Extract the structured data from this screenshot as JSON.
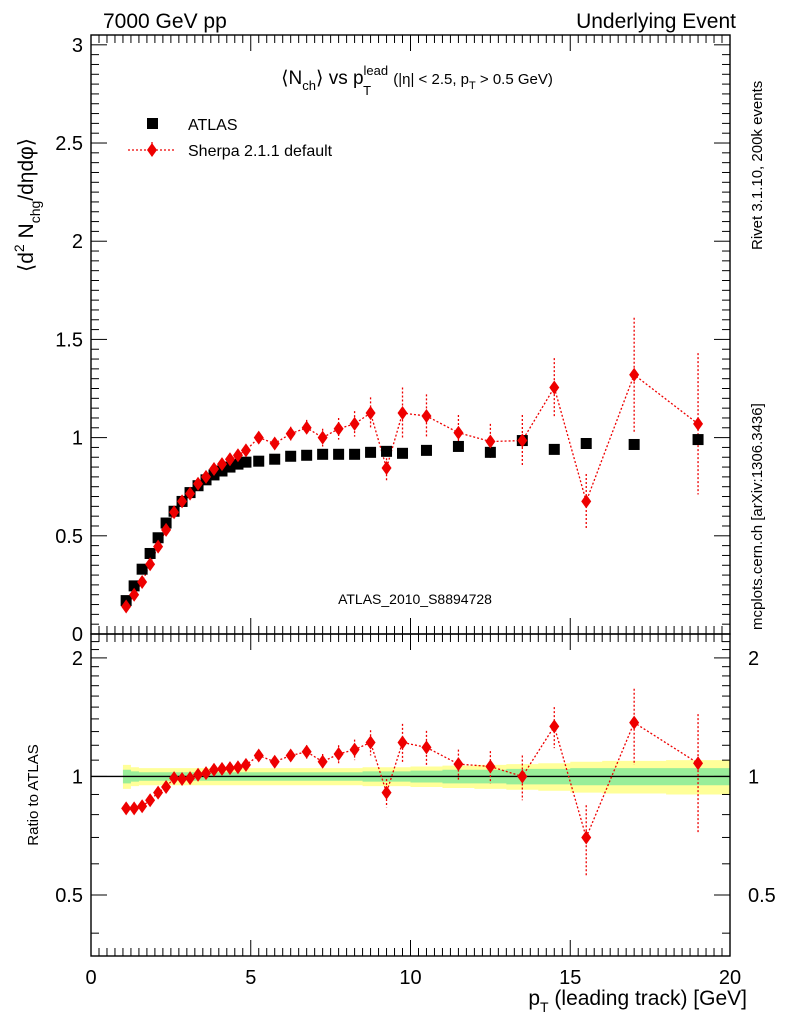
{
  "header": {
    "left": "7000 GeV pp",
    "right": "Underlying Event"
  },
  "side": {
    "top": "Rivet 3.1.10,  200k events",
    "bottom": "mcplots.cern.ch [arXiv:1306.3436]"
  },
  "colors": {
    "data": "#000000",
    "mc": "#ee0000",
    "band_inner": "#99ee99",
    "band_outer": "#ffff99"
  },
  "chart_data": [
    {
      "type": "scatter",
      "title": {
        "main_a": "⟨N",
        "main_a_sub": "ch",
        "main_b": "⟩ vs p",
        "main_b_sup": "lead",
        "main_b_sub": "T",
        "cond_a": " (|η| < 2.5, p",
        "cond_a_sub": "T",
        "cond_b": " > 0.5 GeV)"
      },
      "ylabel": {
        "a": "⟨d",
        "a_sup": "2",
        "b": " N",
        "b_sub": "chg",
        "c": "/dηdφ⟩"
      },
      "watermark": "ATLAS_2010_S8894728",
      "xlim": [
        0,
        20
      ],
      "ylim": [
        0,
        3.05
      ],
      "yticks": [
        {
          "v": 0,
          "label": "0"
        },
        {
          "v": 0.5,
          "label": "0.5"
        },
        {
          "v": 1,
          "label": "1"
        },
        {
          "v": 1.5,
          "label": "1.5"
        },
        {
          "v": 2,
          "label": "2"
        },
        {
          "v": 2.5,
          "label": "2.5"
        },
        {
          "v": 3,
          "label": "3"
        }
      ],
      "legend_placement": "top-left",
      "series": [
        {
          "name": "ATLAS",
          "marker": "square",
          "x": [
            1.1,
            1.35,
            1.6,
            1.85,
            2.1,
            2.35,
            2.6,
            2.85,
            3.1,
            3.35,
            3.6,
            3.85,
            4.1,
            4.35,
            4.6,
            4.85,
            5.25,
            5.75,
            6.25,
            6.75,
            7.25,
            7.75,
            8.25,
            8.75,
            9.25,
            9.75,
            10.5,
            11.5,
            12.5,
            13.5,
            14.5,
            15.5,
            17.0,
            19.0
          ],
          "y": [
            0.17,
            0.245,
            0.33,
            0.41,
            0.49,
            0.565,
            0.625,
            0.675,
            0.72,
            0.755,
            0.785,
            0.81,
            0.83,
            0.85,
            0.865,
            0.875,
            0.88,
            0.89,
            0.905,
            0.91,
            0.915,
            0.915,
            0.915,
            0.925,
            0.93,
            0.92,
            0.935,
            0.955,
            0.925,
            0.985,
            0.94,
            0.97,
            0.965,
            0.99
          ]
        },
        {
          "name": "Sherpa 2.1.1 default",
          "marker": "diamond",
          "line": "dotted",
          "x": [
            1.1,
            1.35,
            1.6,
            1.85,
            2.1,
            2.35,
            2.6,
            2.85,
            3.1,
            3.35,
            3.6,
            3.85,
            4.1,
            4.35,
            4.6,
            4.85,
            5.25,
            5.75,
            6.25,
            6.75,
            7.25,
            7.75,
            8.25,
            8.75,
            9.25,
            9.75,
            10.5,
            11.5,
            12.5,
            13.5,
            14.5,
            15.5,
            17.0,
            19.0
          ],
          "y": [
            0.14,
            0.2,
            0.265,
            0.355,
            0.445,
            0.53,
            0.62,
            0.675,
            0.715,
            0.765,
            0.8,
            0.84,
            0.865,
            0.89,
            0.91,
            0.935,
            1.0,
            0.97,
            1.02,
            1.05,
            1.0,
            1.045,
            1.07,
            1.125,
            0.845,
            1.125,
            1.11,
            1.025,
            0.98,
            0.985,
            1.255,
            0.675,
            1.32,
            1.07
          ],
          "err": [
            0.005,
            0.005,
            0.005,
            0.005,
            0.005,
            0.005,
            0.005,
            0.006,
            0.007,
            0.008,
            0.01,
            0.012,
            0.014,
            0.016,
            0.018,
            0.02,
            0.02,
            0.025,
            0.035,
            0.04,
            0.045,
            0.055,
            0.065,
            0.08,
            0.07,
            0.13,
            0.11,
            0.09,
            0.09,
            0.13,
            0.15,
            0.14,
            0.29,
            0.36
          ]
        }
      ]
    },
    {
      "type": "scatter",
      "ylabel": "Ratio to ATLAS",
      "xlabel": {
        "a": "p",
        "a_sub": "T",
        "b": " (leading track) [GeV]"
      },
      "xlim": [
        0,
        20
      ],
      "ylim": [
        0.35,
        2.3
      ],
      "xticks": [
        {
          "v": 0,
          "label": "0"
        },
        {
          "v": 5,
          "label": "5"
        },
        {
          "v": 10,
          "label": "10"
        },
        {
          "v": 15,
          "label": "15"
        },
        {
          "v": 20,
          "label": "20"
        }
      ],
      "yticks": [
        {
          "v": 0.5,
          "label": "0.5"
        },
        {
          "v": 1,
          "label": "1"
        },
        {
          "v": 2,
          "label": "2"
        }
      ],
      "reference": 1,
      "bands": {
        "x_edges": [
          1.0,
          1.25,
          1.5,
          1.75,
          2.0,
          2.25,
          2.5,
          2.75,
          3.0,
          3.25,
          3.5,
          3.75,
          4.0,
          4.25,
          4.5,
          4.75,
          5.0,
          5.5,
          6.0,
          6.5,
          7.0,
          7.5,
          8.0,
          8.5,
          9.0,
          9.5,
          10.0,
          11.0,
          12.0,
          13.0,
          14.0,
          15.0,
          16.0,
          18.0,
          20.0
        ],
        "inner_lo": [
          0.96,
          0.97,
          0.975,
          0.975,
          0.975,
          0.975,
          0.975,
          0.975,
          0.975,
          0.975,
          0.975,
          0.975,
          0.975,
          0.975,
          0.975,
          0.975,
          0.975,
          0.975,
          0.975,
          0.975,
          0.975,
          0.975,
          0.975,
          0.97,
          0.97,
          0.97,
          0.965,
          0.96,
          0.96,
          0.955,
          0.955,
          0.95,
          0.95,
          0.95
        ],
        "inner_hi": [
          1.04,
          1.03,
          1.025,
          1.025,
          1.025,
          1.025,
          1.025,
          1.025,
          1.025,
          1.025,
          1.025,
          1.025,
          1.025,
          1.025,
          1.025,
          1.025,
          1.025,
          1.025,
          1.025,
          1.025,
          1.025,
          1.025,
          1.025,
          1.03,
          1.03,
          1.03,
          1.035,
          1.04,
          1.04,
          1.045,
          1.045,
          1.05,
          1.05,
          1.05
        ],
        "outer_lo": [
          0.93,
          0.945,
          0.95,
          0.95,
          0.95,
          0.95,
          0.95,
          0.95,
          0.95,
          0.95,
          0.95,
          0.95,
          0.95,
          0.95,
          0.95,
          0.95,
          0.95,
          0.95,
          0.95,
          0.95,
          0.95,
          0.95,
          0.95,
          0.945,
          0.945,
          0.945,
          0.94,
          0.935,
          0.93,
          0.925,
          0.92,
          0.91,
          0.905,
          0.9
        ],
        "outer_hi": [
          1.07,
          1.055,
          1.05,
          1.05,
          1.05,
          1.05,
          1.05,
          1.05,
          1.05,
          1.05,
          1.05,
          1.05,
          1.05,
          1.05,
          1.05,
          1.05,
          1.05,
          1.05,
          1.05,
          1.05,
          1.05,
          1.05,
          1.05,
          1.055,
          1.055,
          1.055,
          1.06,
          1.065,
          1.07,
          1.075,
          1.08,
          1.09,
          1.095,
          1.1
        ]
      },
      "series": [
        {
          "name": "Sherpa 2.1.1 default",
          "marker": "diamond",
          "line": "dotted",
          "x": [
            1.1,
            1.35,
            1.6,
            1.85,
            2.1,
            2.35,
            2.6,
            2.85,
            3.1,
            3.35,
            3.6,
            3.85,
            4.1,
            4.35,
            4.6,
            4.85,
            5.25,
            5.75,
            6.25,
            6.75,
            7.25,
            7.75,
            8.25,
            8.75,
            9.25,
            9.75,
            10.5,
            11.5,
            12.5,
            13.5,
            14.5,
            15.5,
            17.0,
            19.0
          ],
          "y": [
            0.83,
            0.83,
            0.84,
            0.87,
            0.91,
            0.94,
            0.99,
            0.985,
            0.99,
            1.01,
            1.02,
            1.04,
            1.045,
            1.05,
            1.055,
            1.07,
            1.13,
            1.09,
            1.13,
            1.155,
            1.09,
            1.14,
            1.17,
            1.22,
            0.91,
            1.22,
            1.185,
            1.075,
            1.06,
            1.0,
            1.34,
            0.7,
            1.37,
            1.08
          ],
          "err": [
            0.006,
            0.006,
            0.006,
            0.006,
            0.006,
            0.006,
            0.006,
            0.007,
            0.008,
            0.01,
            0.012,
            0.014,
            0.016,
            0.018,
            0.02,
            0.022,
            0.022,
            0.028,
            0.038,
            0.045,
            0.05,
            0.06,
            0.07,
            0.09,
            0.075,
            0.14,
            0.12,
            0.095,
            0.1,
            0.13,
            0.16,
            0.145,
            0.3,
            0.36
          ]
        }
      ]
    }
  ]
}
